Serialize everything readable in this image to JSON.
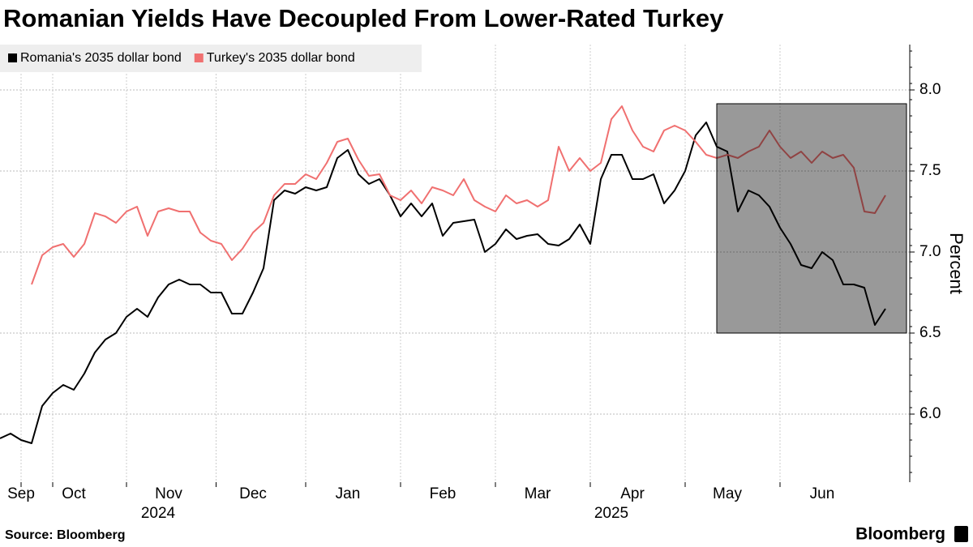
{
  "chart_data": {
    "type": "line",
    "title": "Romanian Yields Have Decoupled From Lower-Rated Turkey",
    "y_label": "Percent",
    "source": "Source: Bloomberg",
    "brand": "Bloomberg",
    "categories": [
      null,
      null,
      "Sep",
      null,
      null,
      null,
      null,
      "Oct",
      null,
      null,
      null,
      null,
      null,
      null,
      null,
      null,
      "Nov",
      null,
      null,
      null,
      null,
      null,
      null,
      null,
      "Dec",
      null,
      null,
      null,
      null,
      null,
      null,
      null,
      null,
      "Jan",
      null,
      null,
      null,
      null,
      null,
      null,
      null,
      null,
      "Feb",
      null,
      null,
      null,
      null,
      null,
      null,
      null,
      null,
      "Mar",
      null,
      null,
      null,
      null,
      null,
      null,
      null,
      null,
      "Apr",
      null,
      null,
      null,
      null,
      null,
      null,
      null,
      null,
      "May",
      null,
      null,
      null,
      null,
      null,
      null,
      null,
      null,
      "Jun",
      null,
      null,
      null,
      null,
      null,
      null
    ],
    "year_labels": [
      {
        "value": 15,
        "label": "2024"
      },
      {
        "value": 58,
        "label": "2025"
      }
    ],
    "series": [
      {
        "name": "Romania's 2035 dollar bond",
        "color": "#000000",
        "values": [
          5.85,
          5.88,
          5.84,
          5.82,
          6.05,
          6.13,
          6.18,
          6.15,
          6.25,
          6.38,
          6.46,
          6.5,
          6.6,
          6.65,
          6.6,
          6.72,
          6.8,
          6.83,
          6.8,
          6.8,
          6.75,
          6.75,
          6.62,
          6.62,
          6.75,
          6.9,
          7.32,
          7.38,
          7.36,
          7.4,
          7.38,
          7.4,
          7.58,
          7.63,
          7.48,
          7.42,
          7.45,
          7.35,
          7.22,
          7.3,
          7.22,
          7.3,
          7.1,
          7.18,
          7.19,
          7.2,
          7.0,
          7.05,
          7.14,
          7.08,
          7.1,
          7.11,
          7.05,
          7.04,
          7.08,
          7.17,
          7.05,
          7.45,
          7.6,
          7.6,
          7.45,
          7.45,
          7.48,
          7.3,
          7.38,
          7.5,
          7.72,
          7.8,
          7.65,
          7.62,
          7.25,
          7.38,
          7.35,
          7.28,
          7.15,
          7.05,
          6.92,
          6.9,
          7.0,
          6.95,
          6.8,
          6.8,
          6.78,
          6.55,
          6.65
        ]
      },
      {
        "name": "Turkey's 2035 dollar bond",
        "color": "#f07070",
        "values": [
          null,
          null,
          null,
          6.8,
          6.98,
          7.03,
          7.05,
          6.97,
          7.05,
          7.24,
          7.22,
          7.18,
          7.25,
          7.28,
          7.1,
          7.25,
          7.27,
          7.25,
          7.25,
          7.12,
          7.07,
          7.05,
          6.95,
          7.02,
          7.12,
          7.18,
          7.35,
          7.42,
          7.42,
          7.48,
          7.45,
          7.55,
          7.68,
          7.7,
          7.57,
          7.47,
          7.48,
          7.35,
          7.32,
          7.38,
          7.3,
          7.4,
          7.38,
          7.35,
          7.45,
          7.32,
          7.28,
          7.25,
          7.35,
          7.3,
          7.32,
          7.28,
          7.32,
          7.65,
          7.5,
          7.58,
          7.5,
          7.55,
          7.82,
          7.9,
          7.75,
          7.65,
          7.62,
          7.75,
          7.78,
          7.75,
          7.68,
          7.6,
          7.58,
          7.6,
          7.58,
          7.62,
          7.65,
          7.75,
          7.65,
          7.58,
          7.62,
          7.55,
          7.62,
          7.58,
          7.6,
          7.52,
          7.25,
          7.24,
          7.35
        ]
      }
    ],
    "highlight": {
      "x": [
        68,
        86
      ],
      "y": [
        6.5,
        7.915
      ],
      "color": "#000000"
    },
    "ylim": [
      5.58,
      8.28
    ],
    "yticks": [
      {
        "value": 6,
        "label": "6.0"
      },
      6.5,
      {
        "value": 7,
        "label": "7.0"
      },
      7.5,
      {
        "value": 8,
        "label": "8.0"
      }
    ],
    "grid": true,
    "legend": "top-left"
  }
}
